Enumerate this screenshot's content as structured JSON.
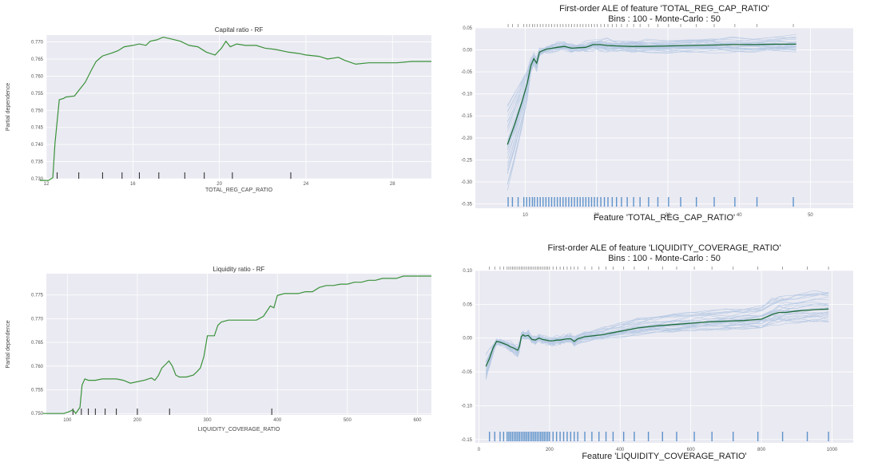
{
  "chart_data": [
    {
      "type": "line",
      "title": "Capital ratio - RF",
      "xlabel": "TOTAL_REG_CAP_RATIO",
      "ylabel": "Partial dependence",
      "xlim": [
        12.0,
        29.8
      ],
      "ylim": [
        0.73,
        0.772
      ],
      "x_ticks": [
        12,
        16,
        20,
        24,
        28
      ],
      "x_tick_labels": [
        "12",
        "16",
        "20",
        "24",
        "28"
      ],
      "y_ticks": [
        0.73,
        0.735,
        0.74,
        0.745,
        0.75,
        0.755,
        0.76,
        0.765,
        0.77
      ],
      "y_tick_labels": [
        "0.730",
        "0.735",
        "0.740",
        "0.745",
        "0.750",
        "0.755",
        "0.760",
        "0.765",
        "0.770"
      ],
      "grid": true,
      "color": "#3a923a",
      "x": [
        11.7,
        12.1,
        12.3,
        12.4,
        12.6,
        12.8,
        12.9,
        13.3,
        13.5,
        13.8,
        14.1,
        14.3,
        14.6,
        15.0,
        15.3,
        15.6,
        16.0,
        16.3,
        16.6,
        16.8,
        17.1,
        17.4,
        17.7,
        18.2,
        18.6,
        19.0,
        19.4,
        19.8,
        20.1,
        20.3,
        20.5,
        20.8,
        21.2,
        21.7,
        22.1,
        22.6,
        23.2,
        23.7,
        24.0,
        24.6,
        25.0,
        25.5,
        25.8,
        26.3,
        26.9,
        27.5,
        28.2,
        28.9,
        29.5,
        29.8
      ],
      "y": [
        0.7295,
        0.7295,
        0.7303,
        0.7403,
        0.7531,
        0.7535,
        0.7539,
        0.7542,
        0.7558,
        0.7582,
        0.762,
        0.7643,
        0.7659,
        0.7667,
        0.7674,
        0.7686,
        0.769,
        0.7694,
        0.769,
        0.7702,
        0.7706,
        0.7714,
        0.771,
        0.7702,
        0.769,
        0.7686,
        0.767,
        0.7662,
        0.7682,
        0.7702,
        0.7686,
        0.7694,
        0.769,
        0.769,
        0.7682,
        0.7678,
        0.767,
        0.7666,
        0.7662,
        0.7658,
        0.765,
        0.7655,
        0.7646,
        0.7635,
        0.7639,
        0.7639,
        0.7639,
        0.7643,
        0.7643,
        0.7643
      ],
      "rug_x": [
        12.5,
        13.5,
        14.6,
        15.5,
        16.3,
        17.2,
        18.4,
        19.3,
        20.6,
        23.3
      ]
    },
    {
      "type": "line",
      "title": "First-order ALE of feature 'TOTAL_REG_CAP_RATIO'",
      "subtitle": "Bins : 100 - Monte-Carlo : 50",
      "xlabel": "Feature 'TOTAL_REG_CAP_RATIO'",
      "xlim": [
        3.0,
        56.0
      ],
      "ylim": [
        -0.36,
        0.05
      ],
      "x_ticks": [
        10,
        20,
        30,
        40,
        50
      ],
      "x_tick_labels": [
        "10",
        "20",
        "30",
        "40",
        "50"
      ],
      "y_ticks": [
        0.05,
        0.0,
        -0.05,
        -0.1,
        -0.15,
        -0.2,
        -0.25,
        -0.3,
        -0.35
      ],
      "y_tick_labels": [
        "0.05",
        "0.00",
        "-0.05",
        "-0.10",
        "-0.15",
        "-0.20",
        "-0.25",
        "-0.30",
        "-0.35"
      ],
      "grid": true,
      "mean_color": "#1d6b3a",
      "mc_color": "#5b8fc9",
      "x": [
        7.5,
        8.5,
        9.5,
        10.3,
        10.8,
        11.2,
        11.6,
        12.0,
        12.4,
        13.0,
        13.8,
        14.5,
        15.5,
        16.5,
        17.5,
        18.5,
        19.5,
        20.5,
        21.5,
        23.0,
        25.0,
        27.0,
        30.0,
        33.0,
        36.0,
        39.0,
        42.0,
        45.0,
        48.0
      ],
      "y": [
        -0.215,
        -0.17,
        -0.12,
        -0.075,
        -0.035,
        -0.02,
        -0.03,
        -0.005,
        -0.002,
        0.002,
        0.004,
        0.006,
        0.008,
        0.004,
        0.005,
        0.006,
        0.012,
        0.012,
        0.01,
        0.009,
        0.008,
        0.008,
        0.009,
        0.01,
        0.011,
        0.012,
        0.012,
        0.013,
        0.013
      ],
      "rug_x": [
        7.6,
        8.2,
        9.0,
        9.8,
        10.2,
        10.6,
        11.0,
        11.3,
        11.7,
        12.1,
        12.5,
        12.9,
        13.3,
        13.7,
        14.1,
        14.5,
        14.9,
        15.3,
        15.7,
        16.1,
        16.5,
        16.9,
        17.3,
        17.7,
        18.1,
        18.5,
        18.9,
        19.3,
        19.7,
        20.1,
        20.6,
        21.1,
        21.6,
        22.2,
        22.8,
        23.5,
        24.3,
        25.2,
        26.1,
        27.3,
        28.6,
        30.1,
        31.8,
        34.0,
        36.5,
        39.4,
        42.5,
        47.6
      ]
    },
    {
      "type": "line",
      "title": "Liquidity ratio - RF",
      "xlabel": "LIQUIDITY_COVERAGE_RATIO",
      "ylabel": "Partial dependence",
      "xlim": [
        70,
        620
      ],
      "ylim": [
        0.7497,
        0.7795
      ],
      "x_ticks": [
        100,
        200,
        300,
        400,
        500,
        600
      ],
      "x_tick_labels": [
        "100",
        "200",
        "300",
        "400",
        "500",
        "600"
      ],
      "y_ticks": [
        0.75,
        0.755,
        0.76,
        0.765,
        0.77,
        0.775
      ],
      "y_tick_labels": [
        "0.750",
        "0.755",
        "0.760",
        "0.765",
        "0.770",
        "0.775"
      ],
      "grid": true,
      "color": "#3a923a",
      "x": [
        65,
        95,
        103,
        108,
        112,
        118,
        121,
        125,
        130,
        140,
        150,
        160,
        170,
        180,
        190,
        200,
        210,
        220,
        225,
        230,
        235,
        240,
        245,
        250,
        255,
        260,
        270,
        280,
        285,
        290,
        295,
        300,
        305,
        310,
        315,
        320,
        330,
        340,
        350,
        360,
        370,
        380,
        390,
        395,
        400,
        410,
        415,
        420,
        430,
        440,
        450,
        460,
        470,
        480,
        490,
        500,
        510,
        520,
        530,
        540,
        550,
        560,
        570,
        580,
        590,
        600,
        610,
        620
      ],
      "y": [
        0.75,
        0.75,
        0.7504,
        0.7508,
        0.75,
        0.7513,
        0.756,
        0.7573,
        0.757,
        0.757,
        0.7573,
        0.7573,
        0.7573,
        0.757,
        0.7564,
        0.7567,
        0.757,
        0.7575,
        0.757,
        0.758,
        0.7596,
        0.7603,
        0.7611,
        0.76,
        0.7581,
        0.7577,
        0.7577,
        0.7581,
        0.7588,
        0.7596,
        0.762,
        0.7664,
        0.7664,
        0.7664,
        0.7686,
        0.7693,
        0.7697,
        0.7697,
        0.7697,
        0.7697,
        0.7697,
        0.7705,
        0.7727,
        0.7723,
        0.7749,
        0.7753,
        0.7753,
        0.7753,
        0.7753,
        0.7757,
        0.7757,
        0.7766,
        0.777,
        0.777,
        0.7773,
        0.7773,
        0.7777,
        0.7777,
        0.7781,
        0.7781,
        0.7785,
        0.7785,
        0.7785,
        0.779,
        0.779,
        0.779,
        0.779,
        0.779
      ],
      "rug_x": [
        108,
        120,
        130,
        140,
        154,
        170,
        200,
        246,
        392
      ]
    },
    {
      "type": "line",
      "title": "First-order ALE of feature 'LIQUIDITY_COVERAGE_RATIO'",
      "subtitle": "Bins : 100 - Monte-Carlo : 50",
      "xlabel": "Feature 'LIQUIDITY_COVERAGE_RATIO'",
      "xlim": [
        -10,
        1060
      ],
      "ylim": [
        -0.155,
        0.1
      ],
      "x_ticks": [
        0,
        200,
        400,
        600,
        800,
        1000
      ],
      "x_tick_labels": [
        "0",
        "200",
        "400",
        "600",
        "800",
        "1000"
      ],
      "y_ticks": [
        0.1,
        0.05,
        0.0,
        -0.05,
        -0.1,
        -0.15
      ],
      "y_tick_labels": [
        "0.10",
        "0.05",
        "0.00",
        "-0.05",
        "-0.10",
        "-0.15"
      ],
      "grid": true,
      "mean_color": "#1d6b3a",
      "mc_color": "#5b8fc9",
      "x": [
        20,
        30,
        40,
        50,
        60,
        70,
        80,
        90,
        100,
        110,
        115,
        120,
        125,
        130,
        140,
        150,
        160,
        170,
        180,
        190,
        200,
        210,
        220,
        230,
        240,
        250,
        260,
        270,
        280,
        300,
        350,
        400,
        450,
        500,
        550,
        600,
        650,
        700,
        750,
        800,
        830,
        850,
        870,
        900,
        950,
        990
      ],
      "y": [
        -0.042,
        -0.03,
        -0.015,
        -0.005,
        -0.006,
        -0.008,
        -0.01,
        -0.013,
        -0.015,
        -0.018,
        -0.012,
        0.002,
        0.005,
        0.003,
        0.004,
        -0.002,
        -0.003,
        0.0,
        -0.002,
        -0.003,
        -0.004,
        -0.004,
        -0.003,
        -0.003,
        -0.002,
        -0.001,
        -0.001,
        -0.005,
        -0.001,
        0.002,
        0.005,
        0.01,
        0.015,
        0.018,
        0.02,
        0.022,
        0.024,
        0.025,
        0.026,
        0.028,
        0.035,
        0.038,
        0.038,
        0.04,
        0.042,
        0.043
      ],
      "rug_x": [
        30,
        45,
        60,
        70,
        80,
        85,
        90,
        95,
        100,
        105,
        110,
        115,
        120,
        125,
        130,
        135,
        140,
        145,
        150,
        155,
        160,
        165,
        170,
        175,
        180,
        185,
        190,
        195,
        200,
        210,
        220,
        230,
        240,
        250,
        260,
        270,
        280,
        300,
        320,
        340,
        360,
        380,
        410,
        440,
        480,
        520,
        560,
        610,
        660,
        720,
        790,
        860,
        930,
        990
      ]
    }
  ]
}
